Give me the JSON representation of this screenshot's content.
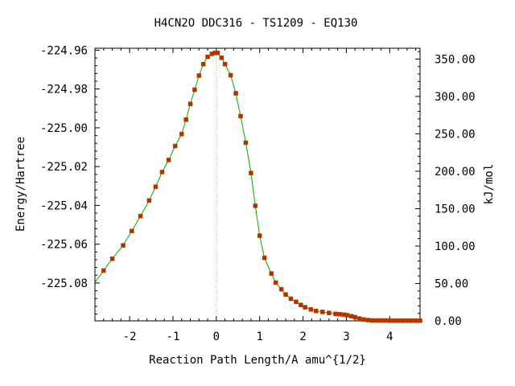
{
  "chart_data": {
    "type": "line",
    "title": "H4CN2O   DDC316 - TS1209 - EQ130",
    "xlabel": "Reaction Path Length/A amu^{1/2}",
    "ylabel": "Energy/Hartree",
    "y2label": "kJ/mol",
    "xlim": [
      -2.8,
      4.7
    ],
    "ylim": [
      -225.0995,
      -224.959
    ],
    "y2lim": [
      0.0,
      364.4
    ],
    "x_ticks": [
      -2,
      -1,
      0,
      1,
      2,
      3,
      4
    ],
    "x_tick_labels": [
      "-2",
      "-1",
      "0",
      "1",
      "2",
      "3",
      "4"
    ],
    "y_ticks": [
      -224.96,
      -224.98,
      -225.0,
      -225.02,
      -225.04,
      -225.06,
      -225.08
    ],
    "y_tick_labels": [
      "-224.96",
      "-224.98",
      "-225.00",
      "-225.02",
      "-225.04",
      "-225.06",
      "-225.08"
    ],
    "y2_ticks": [
      350,
      300,
      250,
      200,
      150,
      100,
      50,
      0
    ],
    "y2_tick_labels": [
      "350.00",
      "300.00",
      "250.00",
      "200.00",
      "150.00",
      "100.00",
      "50.00",
      "0.00"
    ],
    "ts_line_x": 0.0,
    "grid": false,
    "colors": {
      "line": "#00aa00",
      "marker": "#cc2200",
      "ts_line": "#999999"
    },
    "series": [
      {
        "x": [
          -2.6,
          -2.4,
          -2.15,
          -1.95,
          -1.75,
          -1.55,
          -1.4,
          -1.25,
          -1.1,
          -0.95,
          -0.8,
          -0.7,
          -0.6,
          -0.5,
          -0.4,
          -0.3,
          -0.2,
          -0.1,
          -0.03,
          0.03,
          0.12,
          0.2,
          0.33,
          0.45,
          0.56,
          0.68,
          0.8,
          0.9,
          1.0,
          1.11,
          1.27,
          1.37,
          1.5,
          1.6,
          1.72,
          1.84,
          1.95,
          2.05,
          2.18,
          2.3,
          2.45,
          2.6,
          2.75,
          2.85,
          2.95,
          3.02,
          3.12,
          3.2,
          3.3,
          3.4,
          3.5,
          3.6,
          3.7,
          3.8,
          3.9,
          4.0,
          4.1,
          4.2,
          4.3,
          4.4,
          4.5,
          4.6,
          4.7
        ],
        "y": [
          -225.0736,
          -225.0675,
          -225.0606,
          -225.0532,
          -225.0455,
          -225.0375,
          -225.0304,
          -225.0228,
          -225.0166,
          -225.0094,
          -225.0032,
          -224.9958,
          -224.9877,
          -224.9804,
          -224.9731,
          -224.9672,
          -224.9634,
          -224.9619,
          -224.9614,
          -224.9614,
          -224.9639,
          -224.9672,
          -224.9729,
          -224.9822,
          -224.994,
          -225.0077,
          -225.0233,
          -225.0402,
          -225.0556,
          -225.067,
          -225.0751,
          -225.0798,
          -225.0832,
          -225.0859,
          -225.0881,
          -225.0897,
          -225.0913,
          -225.0925,
          -225.0936,
          -225.0944,
          -225.0949,
          -225.0954,
          -225.0959,
          -225.0961,
          -225.0963,
          -225.0966,
          -225.0971,
          -225.0976,
          -225.0983,
          -225.0988,
          -225.0991,
          -225.0993,
          -225.0993,
          -225.0993,
          -225.0993,
          -225.0994,
          -225.0994,
          -225.0994,
          -225.0994,
          -225.0994,
          -225.0994,
          -225.0994,
          -225.0994
        ]
      }
    ]
  }
}
